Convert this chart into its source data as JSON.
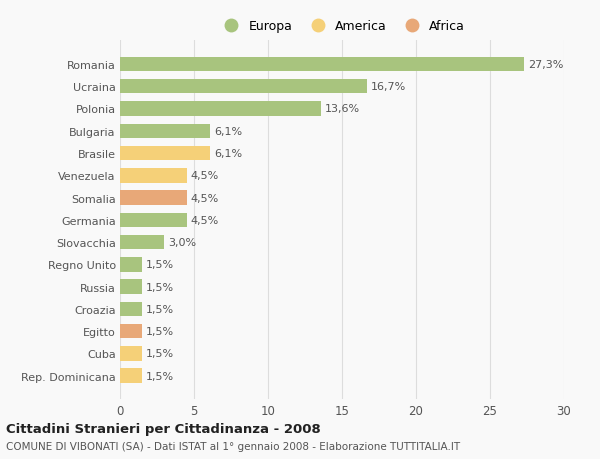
{
  "categories": [
    "Romania",
    "Ucraina",
    "Polonia",
    "Bulgaria",
    "Brasile",
    "Venezuela",
    "Somalia",
    "Germania",
    "Slovacchia",
    "Regno Unito",
    "Russia",
    "Croazia",
    "Egitto",
    "Cuba",
    "Rep. Dominicana"
  ],
  "values": [
    27.3,
    16.7,
    13.6,
    6.1,
    6.1,
    4.5,
    4.5,
    4.5,
    3.0,
    1.5,
    1.5,
    1.5,
    1.5,
    1.5,
    1.5
  ],
  "labels": [
    "27,3%",
    "16,7%",
    "13,6%",
    "6,1%",
    "6,1%",
    "4,5%",
    "4,5%",
    "4,5%",
    "3,0%",
    "1,5%",
    "1,5%",
    "1,5%",
    "1,5%",
    "1,5%",
    "1,5%"
  ],
  "continent": [
    "Europa",
    "Europa",
    "Europa",
    "Europa",
    "America",
    "America",
    "Africa",
    "Europa",
    "Europa",
    "Europa",
    "Europa",
    "Europa",
    "Africa",
    "America",
    "America"
  ],
  "colors": {
    "Europa": "#a8c47e",
    "America": "#f5d078",
    "Africa": "#e8a878"
  },
  "xlim": [
    0,
    30
  ],
  "xticks": [
    0,
    5,
    10,
    15,
    20,
    25,
    30
  ],
  "title": "Cittadini Stranieri per Cittadinanza - 2008",
  "subtitle": "COMUNE DI VIBONATI (SA) - Dati ISTAT al 1° gennaio 2008 - Elaborazione TUTTITALIA.IT",
  "bg_color": "#f9f9f9",
  "grid_color": "#dddddd",
  "bar_height": 0.65,
  "label_fontsize": 8.0,
  "ytick_fontsize": 8.0,
  "xtick_fontsize": 8.5,
  "legend_fontsize": 9.0,
  "title_fontsize": 9.5,
  "subtitle_fontsize": 7.5
}
